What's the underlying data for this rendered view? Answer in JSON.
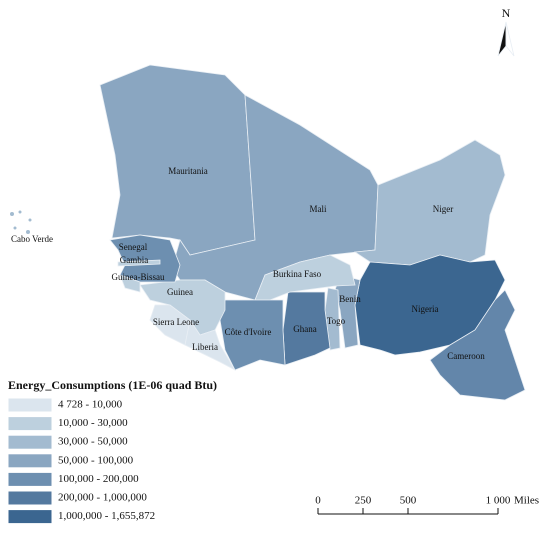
{
  "map": {
    "north": "N",
    "countries": [
      "Mauritania",
      "Mali",
      "Niger",
      "Senegal",
      "Gambia",
      "Guinea-Bissau",
      "Guinea",
      "Burkina Faso",
      "Benin",
      "Nigeria",
      "Sierra Leone",
      "Côte d'Ivoire",
      "Ghana",
      "Togo",
      "Liberia",
      "Cameroon",
      "Cabo Verde"
    ],
    "legend": {
      "title": "Energy_Consumptions (1E-06 quad Btu)",
      "items": [
        {
          "label": "4 728 - 10,000",
          "color": "#dbe5ee"
        },
        {
          "label": "10,000 - 30,000",
          "color": "#bdd0de"
        },
        {
          "label": "30,000 - 50,000",
          "color": "#a3bbd0"
        },
        {
          "label": "50,000 - 100,000",
          "color": "#8aa6c1"
        },
        {
          "label": "100,000 - 200,000",
          "color": "#6d8fb0"
        },
        {
          "label": "200,000 - 1,000,000",
          "color": "#54799f"
        },
        {
          "label": "1,000,000 - 1,655,872",
          "color": "#3b6690"
        }
      ]
    },
    "scale": {
      "ticks": [
        0,
        250,
        500,
        {
          "value": 1000,
          "label": "1 000"
        }
      ],
      "unit": "Miles"
    }
  }
}
